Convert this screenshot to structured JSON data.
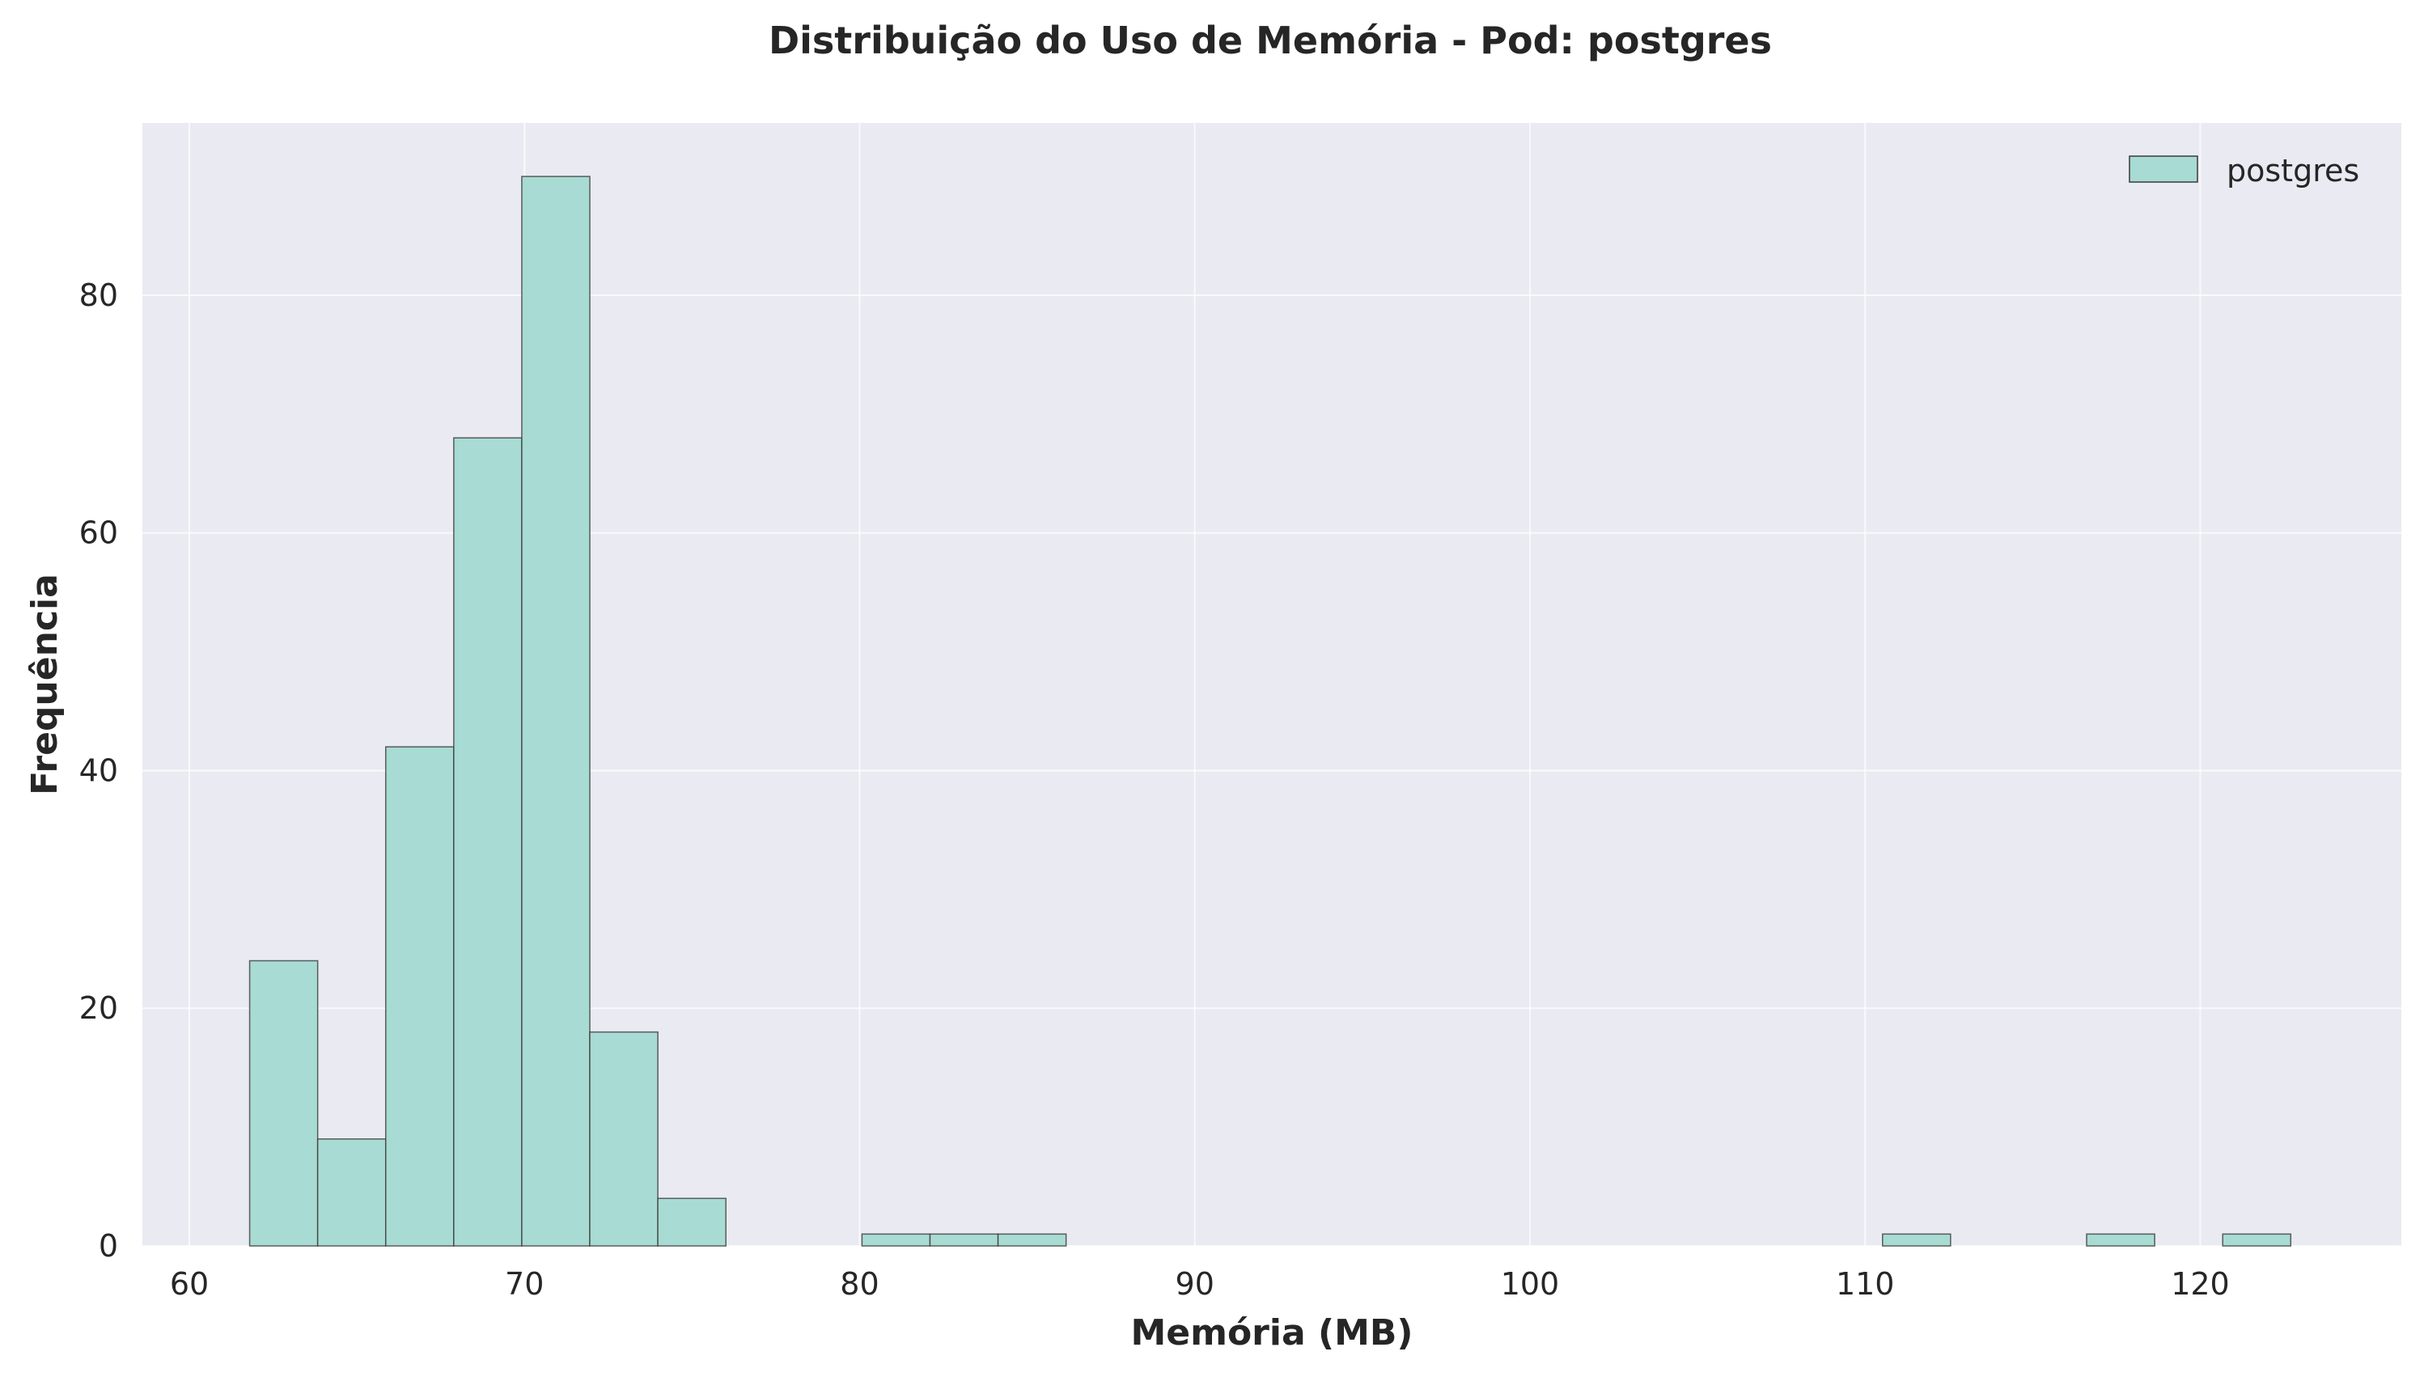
{
  "chart_data": {
    "type": "histogram",
    "title": "Distribuição do Uso de Memória - Pod: postgres",
    "xlabel": "Memória (MB)",
    "ylabel": "Frequência",
    "xlim": [
      58.6,
      126.0
    ],
    "ylim": [
      0,
      94.5
    ],
    "xticks": [
      60,
      70,
      80,
      90,
      100,
      110,
      120
    ],
    "yticks": [
      0,
      20,
      40,
      60,
      80
    ],
    "grid": true,
    "legend": {
      "position": "top-right",
      "entries": [
        "postgres"
      ]
    },
    "series": [
      {
        "name": "postgres",
        "color": "#a8dbd3",
        "edge_color": "#3a3a3a",
        "bins": [
          {
            "x0": 61.8,
            "x1": 63.83,
            "count": 24
          },
          {
            "x0": 63.83,
            "x1": 65.86,
            "count": 9
          },
          {
            "x0": 65.86,
            "x1": 67.89,
            "count": 42
          },
          {
            "x0": 67.89,
            "x1": 69.92,
            "count": 68
          },
          {
            "x0": 69.92,
            "x1": 71.95,
            "count": 90
          },
          {
            "x0": 71.95,
            "x1": 73.98,
            "count": 18
          },
          {
            "x0": 73.98,
            "x1": 76.01,
            "count": 4
          },
          {
            "x0": 80.07,
            "x1": 82.1,
            "count": 1
          },
          {
            "x0": 82.1,
            "x1": 84.13,
            "count": 1
          },
          {
            "x0": 84.13,
            "x1": 86.16,
            "count": 1
          },
          {
            "x0": 110.52,
            "x1": 112.55,
            "count": 1
          },
          {
            "x0": 116.61,
            "x1": 118.64,
            "count": 1
          },
          {
            "x0": 120.67,
            "x1": 122.7,
            "count": 1
          }
        ]
      }
    ],
    "colors": {
      "plot_background": "#eaeaf2",
      "grid": "#ffffff",
      "text": "#262626"
    }
  }
}
